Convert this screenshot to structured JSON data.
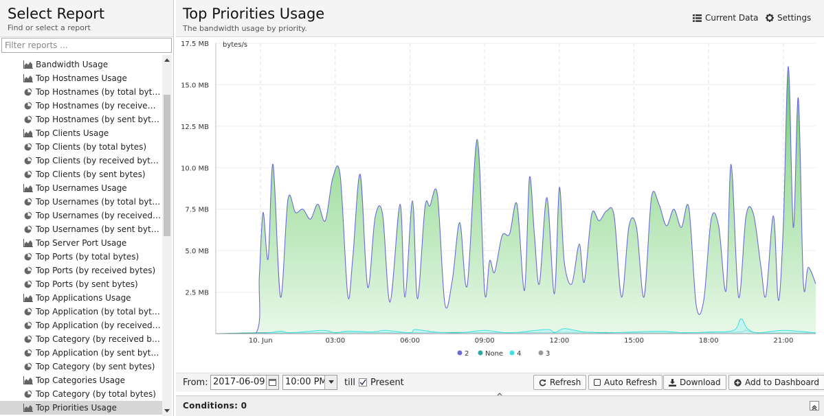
{
  "left": {
    "title": "Select Report",
    "subtitle": "Find or select a report",
    "filter_placeholder": "Filter reports ...",
    "items": [
      {
        "label": "Bandwidth Usage",
        "icon": "area-chart-icon"
      },
      {
        "label": "Top Hostnames Usage",
        "icon": "area-chart-icon"
      },
      {
        "label": "Top Hostnames (by total bytes)",
        "icon": "pie-chart-icon"
      },
      {
        "label": "Top Hostnames (by received byte...",
        "icon": "pie-chart-icon"
      },
      {
        "label": "Top Hostnames (by sent bytes)",
        "icon": "pie-chart-icon"
      },
      {
        "label": "Top Clients Usage",
        "icon": "area-chart-icon"
      },
      {
        "label": "Top Clients (by total bytes)",
        "icon": "pie-chart-icon"
      },
      {
        "label": "Top Clients (by received bytes)",
        "icon": "pie-chart-icon"
      },
      {
        "label": "Top Clients (by sent bytes)",
        "icon": "pie-chart-icon"
      },
      {
        "label": "Top Usernames Usage",
        "icon": "area-chart-icon"
      },
      {
        "label": "Top Usernames (by total bytes)",
        "icon": "pie-chart-icon"
      },
      {
        "label": "Top Usernames (by received bytes)",
        "icon": "pie-chart-icon"
      },
      {
        "label": "Top Usernames (by sent bytes)",
        "icon": "pie-chart-icon"
      },
      {
        "label": "Top Server Port Usage",
        "icon": "area-chart-icon"
      },
      {
        "label": "Top Ports (by total bytes)",
        "icon": "pie-chart-icon"
      },
      {
        "label": "Top Ports (by received bytes)",
        "icon": "pie-chart-icon"
      },
      {
        "label": "Top Ports (by sent bytes)",
        "icon": "pie-chart-icon"
      },
      {
        "label": "Top Applications Usage",
        "icon": "area-chart-icon"
      },
      {
        "label": "Top Application (by total bytes)",
        "icon": "pie-chart-icon"
      },
      {
        "label": "Top Application (by received bytes)",
        "icon": "pie-chart-icon"
      },
      {
        "label": "Top Category (by received bytes)",
        "icon": "pie-chart-icon"
      },
      {
        "label": "Top Application (by sent bytes)",
        "icon": "pie-chart-icon"
      },
      {
        "label": "Top Category (by sent bytes)",
        "icon": "pie-chart-icon"
      },
      {
        "label": "Top Categories Usage",
        "icon": "area-chart-icon"
      },
      {
        "label": "Top Category (by total bytes)",
        "icon": "pie-chart-icon"
      },
      {
        "label": "Top Priorities Usage",
        "icon": "area-chart-icon",
        "selected": true
      }
    ]
  },
  "report": {
    "title": "Top Priorities Usage",
    "subtitle": "The bandwidth usage by priority.",
    "current_data_label": "Current Data",
    "settings_label": "Settings"
  },
  "chart_data": {
    "type": "area",
    "ylabel": "bytes/s",
    "y_ticks": [
      "2.5 MB",
      "5.0 MB",
      "7.5 MB",
      "10.0 MB",
      "12.5 MB",
      "15.0 MB",
      "17.5 MB"
    ],
    "y_tick_values": [
      2.5,
      5.0,
      7.5,
      10.0,
      12.5,
      15.0,
      17.5
    ],
    "ylim": [
      0,
      17.5
    ],
    "x_ticks": [
      "10. Jun",
      "03:00",
      "06:00",
      "09:00",
      "12:00",
      "15:00",
      "18:00",
      "21:00"
    ],
    "x_tick_hours": [
      0,
      3,
      6,
      9,
      12,
      15,
      18,
      21
    ],
    "xlim_hours": [
      -1.8,
      22.3
    ],
    "grid": true,
    "legend_position": "bottom",
    "series": [
      {
        "name": "2",
        "color": "#6a6ad8",
        "x": [
          -1.8,
          -0.2,
          -0.05,
          0.1,
          0.3,
          0.5,
          0.8,
          1.1,
          1.4,
          1.7,
          2.0,
          2.3,
          2.6,
          2.9,
          3.2,
          3.5,
          3.7,
          4.0,
          4.3,
          4.6,
          4.9,
          5.2,
          5.6,
          5.8,
          6.1,
          6.3,
          6.6,
          6.8,
          7.1,
          7.4,
          7.7,
          8.0,
          8.3,
          8.7,
          9.0,
          9.2,
          9.4,
          9.7,
          10.0,
          10.3,
          10.6,
          10.8,
          11.0,
          11.2,
          11.5,
          11.8,
          12.0,
          12.2,
          12.5,
          12.8,
          13.0,
          13.3,
          13.6,
          13.9,
          14.2,
          14.5,
          14.8,
          15.1,
          15.4,
          15.7,
          16.0,
          16.3,
          16.6,
          16.9,
          17.2,
          17.5,
          17.8,
          18.1,
          18.4,
          18.7,
          18.9,
          19.2,
          19.5,
          19.8,
          20.1,
          20.3,
          20.6,
          20.8,
          21.0,
          21.2,
          21.4,
          21.6,
          21.8,
          22.0,
          22.3
        ],
        "y": [
          0,
          0,
          3.5,
          7.3,
          4.5,
          10.2,
          2.2,
          8.1,
          7.3,
          7.5,
          6.9,
          7.8,
          6.8,
          9.4,
          9.5,
          2.3,
          4.5,
          9.6,
          2.8,
          7.0,
          7.2,
          1.9,
          7.8,
          2.2,
          8.0,
          2.1,
          7.6,
          7.7,
          8.4,
          1.8,
          3.2,
          6.7,
          2.9,
          11.7,
          2.5,
          4.4,
          3.7,
          5.9,
          6.0,
          7.8,
          2.6,
          9.4,
          5.9,
          3.0,
          8.2,
          2.4,
          8.8,
          4.3,
          3.0,
          5.4,
          3.1,
          7.2,
          6.8,
          7.4,
          7.1,
          2.2,
          6.5,
          6.4,
          2.2,
          8.2,
          7.8,
          6.5,
          7.5,
          6.4,
          7.6,
          1.7,
          2.0,
          6.9,
          6.5,
          2.6,
          10.2,
          2.2,
          7.1,
          7.2,
          4.0,
          2.3,
          7.1,
          2.0,
          6.6,
          16.1,
          6.4,
          14.2,
          3.1,
          4.0,
          3.0
        ]
      },
      {
        "name": "None",
        "color": "#2aa7a0",
        "x": [
          -1.8,
          0,
          2,
          4,
          6,
          8,
          10,
          12,
          14,
          16,
          18,
          19.3,
          19.5,
          20,
          22.3
        ],
        "y": [
          0,
          0.05,
          0.05,
          0.08,
          0.05,
          0.07,
          0.05,
          0.08,
          0.06,
          0.05,
          0.06,
          0.1,
          0.2,
          0.05,
          0.05
        ]
      },
      {
        "name": "4",
        "color": "#3fe0e0",
        "x": [
          -1.8,
          0,
          0.8,
          1.2,
          2.5,
          3.0,
          3.5,
          4.5,
          5.0,
          6.0,
          6.2,
          7.0,
          8.0,
          9.0,
          10.0,
          11.5,
          11.8,
          12.2,
          13.0,
          14.0,
          16.0,
          17.0,
          18.0,
          19.0,
          19.3,
          19.55,
          20.0,
          21.0,
          22.3
        ],
        "y": [
          0,
          0,
          0.15,
          0.05,
          0.2,
          0.05,
          0.15,
          0.1,
          0.2,
          0.05,
          0.25,
          0.1,
          0.05,
          0.2,
          0.05,
          0.25,
          0.05,
          0.3,
          0.1,
          0.05,
          0.15,
          0.05,
          0.1,
          0.2,
          0.9,
          0.3,
          0.05,
          0.2,
          0.05
        ]
      },
      {
        "name": "3",
        "color": "#999999",
        "x": [
          -1.8,
          22.3
        ],
        "y": [
          0,
          0
        ]
      }
    ]
  },
  "toolbar": {
    "from_label": "From:",
    "from_date": "2017-06-09",
    "from_time": "10:00 PM",
    "till_label": "till",
    "present_label": "Present",
    "present_checked": true,
    "refresh_label": "Refresh",
    "auto_refresh_label": "Auto Refresh",
    "download_label": "Download",
    "add_dashboard_label": "Add to Dashboard"
  },
  "conditions": {
    "label": "Conditions: 0"
  }
}
